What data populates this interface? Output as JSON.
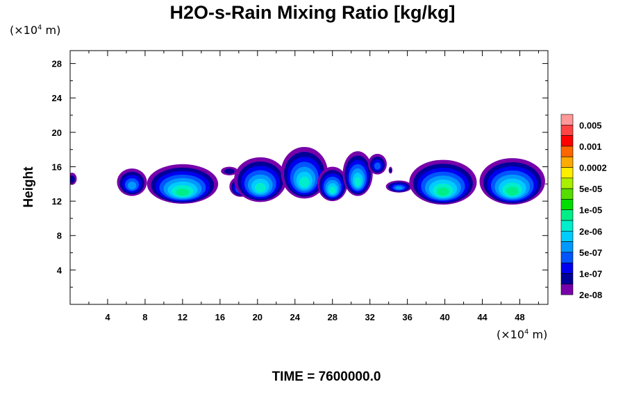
{
  "title": "H2O-s-Rain Mixing Ratio [kg/kg]",
  "y_unit": {
    "prefix": "(×10",
    "exp": "4",
    "suffix": " m)"
  },
  "x_unit": {
    "prefix": "(×10",
    "exp": "4",
    "suffix": " m)"
  },
  "ylabel": "Height",
  "footer": "TIME = 7600000.0",
  "chart_data": {
    "type": "heatmap",
    "title": "H2O-s-Rain Mixing Ratio [kg/kg]",
    "ylabel": "Height",
    "xlabel": "",
    "xlim": [
      0,
      51
    ],
    "ylim": [
      0,
      29.5
    ],
    "x_ticks": [
      4,
      8,
      12,
      16,
      20,
      24,
      28,
      32,
      36,
      40,
      44,
      48
    ],
    "y_ticks": [
      4,
      8,
      12,
      16,
      20,
      24,
      28
    ],
    "colorbar": {
      "levels": [
        "0.005",
        "0.001",
        "0.0002",
        "5e-05",
        "1e-05",
        "2e-06",
        "5e-07",
        "1e-07",
        "2e-08"
      ],
      "colors": [
        "#FF9999",
        "#FF4444",
        "#FF0000",
        "#FF6600",
        "#FFAA00",
        "#FFEE00",
        "#AAEE00",
        "#55DD00",
        "#00DD00",
        "#00EE88",
        "#00EECC",
        "#00CCFF",
        "#0099FF",
        "#0055FF",
        "#0000EE",
        "#000099",
        "#7700AA"
      ]
    },
    "cells": [
      {
        "xc": 0.2,
        "yc": 14.6,
        "rx": 0.5,
        "ry": 0.7,
        "level": 1
      },
      {
        "xc": 6.6,
        "yc": 14.2,
        "rx": 1.6,
        "ry": 1.6,
        "level": 4
      },
      {
        "xc": 12.0,
        "yc": 14.0,
        "rx": 3.8,
        "ry": 2.3,
        "level": 7
      },
      {
        "xc": 17.0,
        "yc": 15.5,
        "rx": 0.9,
        "ry": 0.5,
        "level": 1
      },
      {
        "xc": 18.2,
        "yc": 13.7,
        "rx": 1.2,
        "ry": 1.2,
        "level": 4
      },
      {
        "xc": 20.3,
        "yc": 14.5,
        "rx": 2.8,
        "ry": 2.6,
        "level": 6
      },
      {
        "xc": 25.0,
        "yc": 15.3,
        "rx": 2.5,
        "ry": 3.0,
        "level": 6
      },
      {
        "xc": 28.0,
        "yc": 14.0,
        "rx": 1.6,
        "ry": 2.0,
        "level": 6
      },
      {
        "xc": 30.7,
        "yc": 15.2,
        "rx": 1.6,
        "ry": 2.6,
        "level": 6
      },
      {
        "xc": 32.8,
        "yc": 16.3,
        "rx": 1.0,
        "ry": 1.2,
        "level": 3
      },
      {
        "xc": 35.1,
        "yc": 13.7,
        "rx": 1.4,
        "ry": 0.7,
        "level": 4
      },
      {
        "xc": 39.8,
        "yc": 14.2,
        "rx": 3.6,
        "ry": 2.6,
        "level": 7
      },
      {
        "xc": 47.2,
        "yc": 14.3,
        "rx": 3.5,
        "ry": 2.7,
        "level": 7
      },
      {
        "xc": 34.2,
        "yc": 15.6,
        "rx": 0.2,
        "ry": 0.4,
        "level": 1
      }
    ]
  }
}
